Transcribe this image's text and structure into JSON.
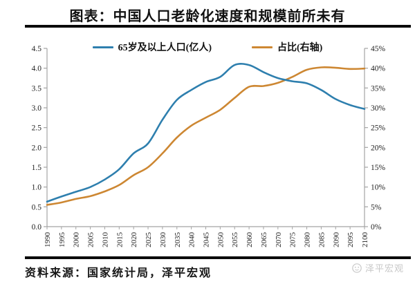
{
  "title": "图表：中国人口老龄化速度和规模前所未有",
  "footer": {
    "source": "资料来源：国家统计局，泽平宏观",
    "watermark": "泽平宏观"
  },
  "colors": {
    "population_line": "#2e7fae",
    "share_line": "#cd8732",
    "axis": "#a3a3a3",
    "tick_text": "#222222",
    "watermark_gray": "#c7c7c7"
  },
  "chart_data": {
    "type": "line",
    "title": "图表：中国人口老龄化速度和规模前所未有",
    "x": [
      1990,
      1995,
      2000,
      2005,
      2010,
      2015,
      2020,
      2025,
      2030,
      2035,
      2040,
      2045,
      2050,
      2055,
      2060,
      2065,
      2070,
      2075,
      2080,
      2085,
      2090,
      2095,
      2100
    ],
    "x_tick_labels": [
      "1990",
      "1995",
      "2000",
      "2005",
      "2010",
      "2015",
      "2020",
      "2025",
      "2030",
      "2035",
      "2040",
      "2045",
      "2050",
      "2055",
      "2060",
      "2065",
      "2070",
      "2075",
      "2080",
      "2085",
      "2090",
      "2095",
      "2100"
    ],
    "series": [
      {
        "name": "65岁及以上人口(亿人)",
        "axis": "left",
        "color": "#2e7fae",
        "values": [
          0.63,
          0.76,
          0.88,
          1.0,
          1.19,
          1.45,
          1.85,
          2.1,
          2.7,
          3.2,
          3.45,
          3.65,
          3.78,
          4.08,
          4.08,
          3.9,
          3.75,
          3.67,
          3.62,
          3.45,
          3.22,
          3.07,
          2.97
        ]
      },
      {
        "name": "占比(右轴)",
        "axis": "right",
        "color": "#cd8732",
        "values": [
          5.5,
          6.1,
          7.0,
          7.7,
          8.9,
          10.5,
          13.0,
          15.0,
          18.5,
          22.5,
          25.5,
          27.5,
          29.5,
          32.5,
          35.3,
          35.5,
          36.3,
          37.8,
          39.6,
          40.2,
          40.1,
          39.8,
          39.9
        ]
      }
    ],
    "left_axis": {
      "min": 0,
      "max": 4.5,
      "step": 0.5,
      "tick_labels": [
        "0.0",
        "0.5",
        "1.0",
        "1.5",
        "2.0",
        "2.5",
        "3.0",
        "3.5",
        "4.0",
        "4.5"
      ]
    },
    "right_axis": {
      "min": 0,
      "max": 45,
      "step": 5,
      "unit": "%",
      "tick_labels": [
        "0%",
        "5%",
        "10%",
        "15%",
        "20%",
        "25%",
        "30%",
        "35%",
        "40%",
        "45%"
      ]
    },
    "grid": false,
    "legend_position": "top"
  }
}
